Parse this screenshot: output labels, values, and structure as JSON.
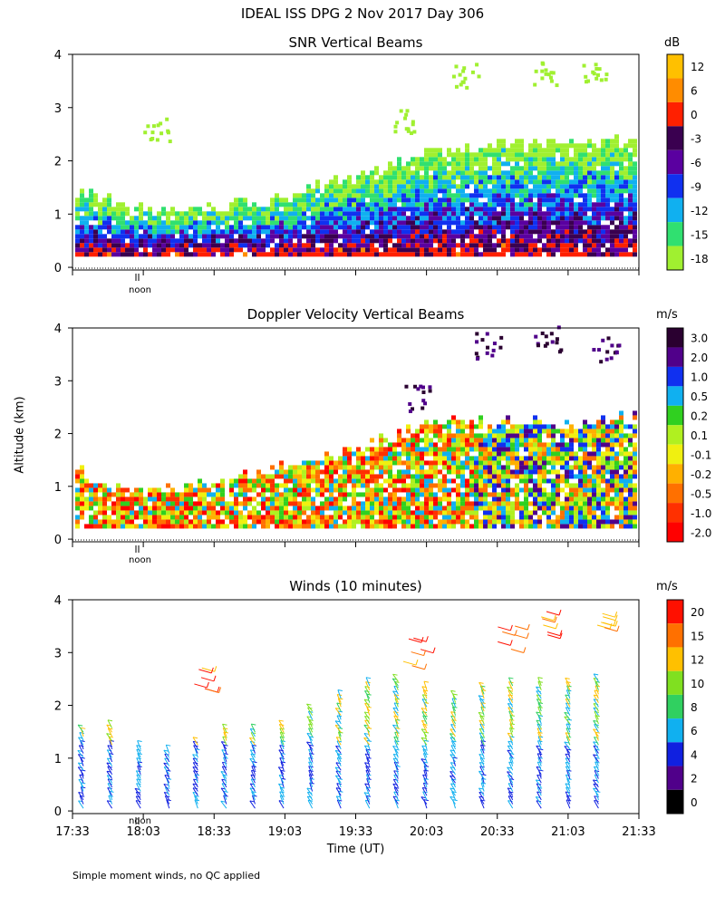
{
  "header": {
    "title": "IDEAL ISS DPG    2 Nov 2017 Day 306"
  },
  "ylabel": "Altitude (km)",
  "xlabel": "Time (UT)",
  "noon_label": "noon",
  "footnote": "Simple moment winds, no QC applied",
  "chart_data": [
    {
      "type": "heatmap",
      "title": "SNR Vertical Beams",
      "xlabel": "Time (UT)",
      "ylabel": "Altitude (km)",
      "ylim": [
        0,
        4
      ],
      "yticks": [
        "0",
        "1",
        "2",
        "3",
        "4"
      ],
      "time_range": [
        "17:33",
        "21:33"
      ],
      "colorbar": {
        "unit": "dB",
        "labels": [
          "12",
          "6",
          "0",
          "-3",
          "-6",
          "-9",
          "-12",
          "-15",
          "-18"
        ],
        "colors": [
          "#ffc000",
          "#ff8c00",
          "#ff2000",
          "#3a0050",
          "#5a00a0",
          "#1030f0",
          "#10b0f0",
          "#30e070",
          "#a0f030"
        ]
      },
      "profile_top_km": [
        1.4,
        1.2,
        1.0,
        1.0,
        1.1,
        1.2,
        1.3,
        1.5,
        1.7,
        1.9,
        2.1,
        2.2,
        2.3,
        2.3,
        2.3,
        2.3,
        2.4
      ],
      "sparse_layers": [
        {
          "start": "18:03",
          "alt_km": 2.6
        },
        {
          "start": "19:48",
          "alt_km": 2.8
        },
        {
          "start": "20:13",
          "alt_km": 3.6
        },
        {
          "start": "20:48",
          "alt_km": 3.7
        },
        {
          "start": "21:08",
          "alt_km": 3.6
        }
      ]
    },
    {
      "type": "heatmap",
      "title": "Doppler Velocity Vertical Beams",
      "xlabel": "Time (UT)",
      "ylabel": "Altitude (km)",
      "ylim": [
        0,
        4
      ],
      "yticks": [
        "0",
        "1",
        "2",
        "3",
        "4"
      ],
      "time_range": [
        "17:33",
        "21:33"
      ],
      "colorbar": {
        "unit": "m/s",
        "labels": [
          "3.0",
          "2.0",
          "1.0",
          "0.5",
          "0.2",
          "0.1",
          "-0.1",
          "-0.2",
          "-0.5",
          "-1.0",
          "-2.0"
        ],
        "colors": [
          "#2a0030",
          "#50008a",
          "#1030f0",
          "#10b0f0",
          "#30d020",
          "#b0f020",
          "#f0f010",
          "#ffb000",
          "#ff7000",
          "#ff3000",
          "#ff0000"
        ]
      },
      "profile_top_km": [
        1.3,
        0.9,
        0.9,
        0.9,
        1.0,
        1.2,
        1.4,
        1.5,
        1.7,
        1.9,
        2.2,
        2.2,
        2.2,
        2.2,
        2.1,
        2.2,
        2.3
      ],
      "sparse_layers": [
        {
          "start": "19:53",
          "alt_km": 2.7
        },
        {
          "start": "20:23",
          "alt_km": 3.7
        },
        {
          "start": "20:48",
          "alt_km": 3.8
        },
        {
          "start": "21:13",
          "alt_km": 3.6
        }
      ]
    },
    {
      "type": "barbs",
      "title": "Winds (10 minutes)",
      "xlabel": "Time (UT)",
      "ylabel": "Altitude (km)",
      "ylim": [
        0,
        4
      ],
      "yticks": [
        "0",
        "1",
        "2",
        "3",
        "4"
      ],
      "xtick_labels": [
        "17:33",
        "18:03",
        "18:33",
        "19:03",
        "19:33",
        "20:03",
        "20:33",
        "21:03",
        "21:33"
      ],
      "colorbar": {
        "unit": "m/s",
        "labels": [
          "20",
          "15",
          "12",
          "10",
          "8",
          "6",
          "4",
          "2",
          "0"
        ],
        "colors": [
          "#ff1000",
          "#ff7000",
          "#ffc000",
          "#80e020",
          "#30d060",
          "#10b0f0",
          "#1020e0",
          "#50008a",
          "#000000"
        ]
      },
      "profile_top_km": [
        1.5,
        1.6,
        1.2,
        1.1,
        1.3,
        1.5,
        1.5,
        1.6,
        1.9,
        2.2,
        2.4,
        2.5,
        2.3,
        2.2,
        2.3,
        2.4,
        2.4,
        2.4,
        2.5
      ],
      "upper_barbs": [
        {
          "start": "18:23",
          "alt_km": 2.5
        },
        {
          "start": "19:53",
          "alt_km": 3.0
        },
        {
          "start": "20:33",
          "alt_km": 3.3
        },
        {
          "start": "20:48",
          "alt_km": 3.5
        },
        {
          "start": "21:13",
          "alt_km": 3.6
        }
      ]
    }
  ]
}
